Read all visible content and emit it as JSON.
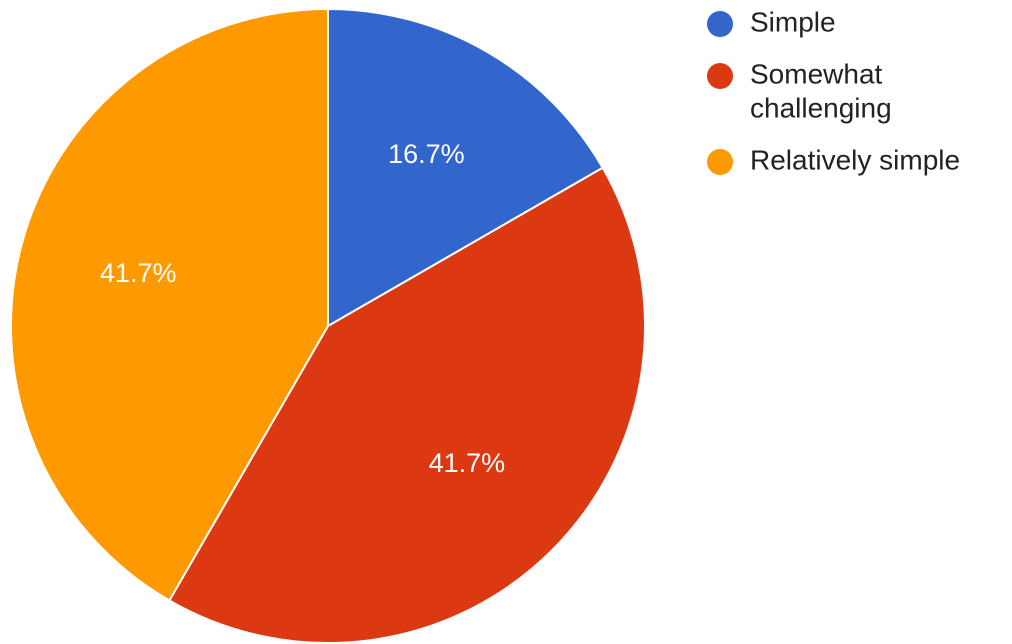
{
  "chart_data": {
    "type": "pie",
    "slices": [
      {
        "label": "Simple",
        "value": 16.7,
        "display": "16.7%",
        "color": "#3366cc"
      },
      {
        "label": "Somewhat challenging",
        "value": 41.7,
        "display": "41.7%",
        "color": "#dc3912"
      },
      {
        "label": "Relatively simple",
        "value": 41.7,
        "display": "41.7%",
        "color": "#ff9900"
      }
    ],
    "start_angle_deg": 0,
    "direction": "clockwise",
    "legend": {
      "placement": "right",
      "items": [
        {
          "lines": [
            "Simple"
          ],
          "color": "#3366cc"
        },
        {
          "lines": [
            "Somewhat",
            "challenging"
          ],
          "color": "#dc3912"
        },
        {
          "lines": [
            "Relatively simple"
          ],
          "color": "#ff9900"
        }
      ]
    }
  }
}
